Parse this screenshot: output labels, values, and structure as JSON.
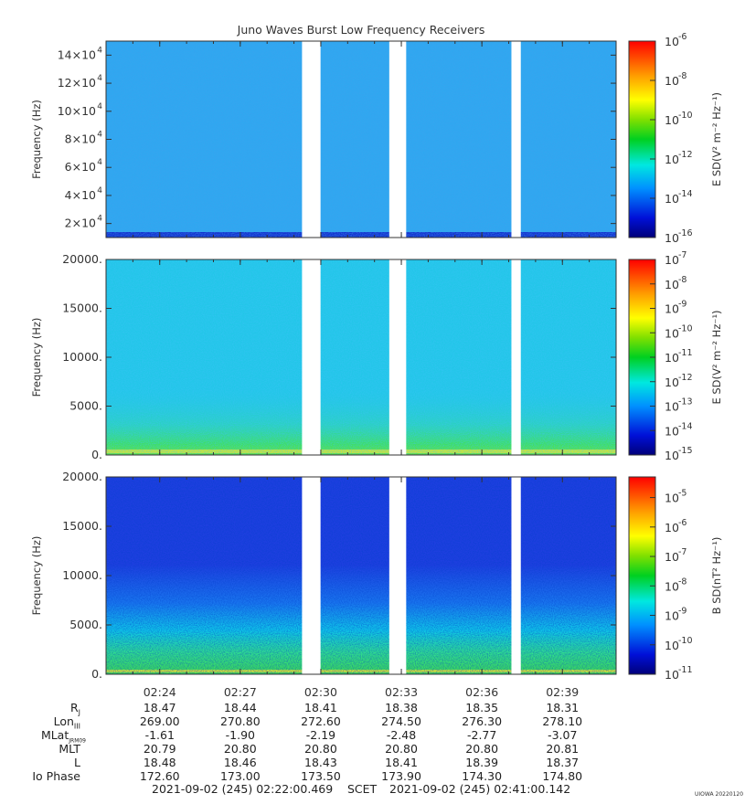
{
  "title": "Juno Waves Burst Low Frequency Receivers",
  "colors": {
    "panel1_bg": "#2fa8f0",
    "panel2_bg": "#22c6e8",
    "panel3_bg": "#1f3fe0",
    "band_green": "#3ee25a",
    "band_yellow": "#c8e63a",
    "band_dark": "#1433d0"
  },
  "chart_data": [
    {
      "type": "heatmap",
      "ylabel": "Frequency (Hz)",
      "yticks": [
        {
          "v": 20000,
          "main": "2×10",
          "exp": "4"
        },
        {
          "v": 40000,
          "main": "4×10",
          "exp": "4"
        },
        {
          "v": 60000,
          "main": "6×10",
          "exp": "4"
        },
        {
          "v": 80000,
          "main": "8×10",
          "exp": "4"
        },
        {
          "v": 100000,
          "main": "10×10",
          "exp": "4"
        },
        {
          "v": 120000,
          "main": "12×10",
          "exp": "4"
        },
        {
          "v": 140000,
          "main": "14×10",
          "exp": "4"
        }
      ],
      "ylim": [
        10000,
        150000
      ],
      "colorbar_label": "E SD(V² m⁻² Hz⁻¹)",
      "colorbar_ticks": [
        {
          "main": "10",
          "exp": "-6"
        },
        {
          "main": "10",
          "exp": "-8"
        },
        {
          "main": "10",
          "exp": "-10"
        },
        {
          "main": "10",
          "exp": "-12"
        },
        {
          "main": "10",
          "exp": "-14"
        },
        {
          "main": "10",
          "exp": "-16"
        }
      ],
      "colorbar_range_log": [
        -16,
        -6
      ]
    },
    {
      "type": "heatmap",
      "ylabel": "Frequency (Hz)",
      "yticks": [
        {
          "v": 0,
          "main": "0.",
          "exp": ""
        },
        {
          "v": 5000,
          "main": "5000.",
          "exp": ""
        },
        {
          "v": 10000,
          "main": "10000.",
          "exp": ""
        },
        {
          "v": 15000,
          "main": "15000.",
          "exp": ""
        },
        {
          "v": 20000,
          "main": "20000.",
          "exp": ""
        }
      ],
      "ylim": [
        0,
        20000
      ],
      "colorbar_label": "E SD(V² m⁻² Hz⁻¹)",
      "colorbar_ticks": [
        {
          "main": "10",
          "exp": "-7"
        },
        {
          "main": "10",
          "exp": "-8"
        },
        {
          "main": "10",
          "exp": "-9"
        },
        {
          "main": "10",
          "exp": "-10"
        },
        {
          "main": "10",
          "exp": "-11"
        },
        {
          "main": "10",
          "exp": "-12"
        },
        {
          "main": "10",
          "exp": "-13"
        },
        {
          "main": "10",
          "exp": "-14"
        },
        {
          "main": "10",
          "exp": "-15"
        }
      ],
      "colorbar_range_log": [
        -15,
        -7
      ]
    },
    {
      "type": "heatmap",
      "ylabel": "Frequency (Hz)",
      "yticks": [
        {
          "v": 0,
          "main": "0.",
          "exp": ""
        },
        {
          "v": 5000,
          "main": "5000.",
          "exp": ""
        },
        {
          "v": 10000,
          "main": "10000.",
          "exp": ""
        },
        {
          "v": 15000,
          "main": "15000.",
          "exp": ""
        },
        {
          "v": 20000,
          "main": "20000.",
          "exp": ""
        }
      ],
      "ylim": [
        0,
        20000
      ],
      "colorbar_label": "B SD(nT² Hz⁻¹)",
      "colorbar_ticks": [
        {
          "main": "10",
          "exp": "-5"
        },
        {
          "main": "10",
          "exp": "-6"
        },
        {
          "main": "10",
          "exp": "-7"
        },
        {
          "main": "10",
          "exp": "-8"
        },
        {
          "main": "10",
          "exp": "-9"
        },
        {
          "main": "10",
          "exp": "-10"
        },
        {
          "main": "10",
          "exp": "-11"
        }
      ],
      "colorbar_range_log": [
        -11,
        -4.3
      ]
    }
  ],
  "x_time_minutes": [
    22.0,
    41.0
  ],
  "data_gaps_minutes": [
    [
      29.3,
      29.99
    ],
    [
      32.55,
      33.18
    ],
    [
      37.1,
      37.45
    ]
  ],
  "x_ticks": [
    {
      "t": 24,
      "label": "02:24"
    },
    {
      "t": 27,
      "label": "02:27"
    },
    {
      "t": 30,
      "label": "02:30"
    },
    {
      "t": 33,
      "label": "02:33"
    },
    {
      "t": 36,
      "label": "02:36"
    },
    {
      "t": 39,
      "label": "02:39"
    }
  ],
  "ephemeris": [
    {
      "label": "R",
      "sub": "J",
      "values": [
        "18.47",
        "18.44",
        "18.41",
        "18.38",
        "18.35",
        "18.31"
      ]
    },
    {
      "label": "Lon",
      "sub": "III",
      "values": [
        "269.00",
        "270.80",
        "272.60",
        "274.50",
        "276.30",
        "278.10"
      ]
    },
    {
      "label": "MLat",
      "sub": "JRM09",
      "values": [
        "-1.61",
        "-1.90",
        "-2.19",
        "-2.48",
        "-2.77",
        "-3.07"
      ]
    },
    {
      "label": "MLT",
      "sub": "",
      "values": [
        "20.79",
        "20.80",
        "20.80",
        "20.80",
        "20.80",
        "20.81"
      ]
    },
    {
      "label": "L",
      "sub": "",
      "values": [
        "18.48",
        "18.46",
        "18.43",
        "18.41",
        "18.39",
        "18.37"
      ]
    },
    {
      "label": "Io Phase",
      "sub": "",
      "values": [
        "172.60",
        "173.00",
        "173.50",
        "173.90",
        "174.30",
        "174.80"
      ]
    }
  ],
  "footer": {
    "start": "2021-09-02 (245) 02:22:00.469",
    "scet": "SCET",
    "end": "2021-09-02 (245) 02:41:00.142"
  },
  "credit": "UIOWA 20220120"
}
